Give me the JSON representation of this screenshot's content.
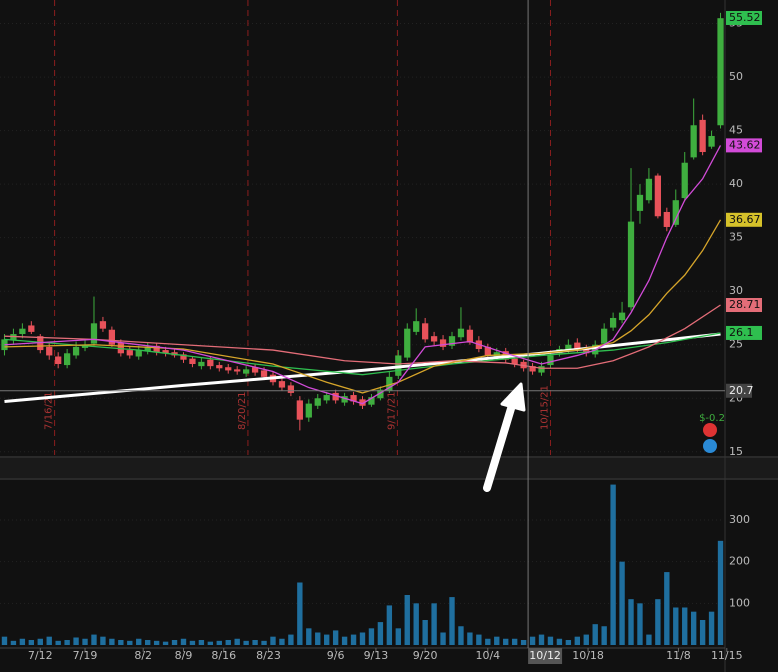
{
  "chart_data": {
    "type": "candlestick",
    "xlim": [
      -0.5,
      80.5
    ],
    "xticks": [
      {
        "value": 4,
        "label": "7/12"
      },
      {
        "value": 9,
        "label": "7/19"
      },
      {
        "value": 15.5,
        "label": "8/2"
      },
      {
        "value": 20,
        "label": "8/9"
      },
      {
        "value": 24.5,
        "label": "8/16"
      },
      {
        "value": 29.5,
        "label": "8/23"
      },
      {
        "value": 37,
        "label": "9/6"
      },
      {
        "value": 41.5,
        "label": "9/13"
      },
      {
        "value": 47,
        "label": "9/20"
      },
      {
        "value": 54,
        "label": "10/4"
      },
      {
        "value": 65.2,
        "label": "10/18"
      },
      {
        "value": 75.3,
        "label": "11/8"
      },
      {
        "value": 80.7,
        "label": "11/15"
      }
    ],
    "ylim": [
      14.7,
      57.2
    ],
    "yticks": [
      15,
      20,
      25,
      30,
      35,
      40,
      45,
      50,
      55
    ],
    "up_color": "#3fae3f",
    "down_color": "#e8525a",
    "candles": {
      "open": [
        24.5,
        25.4,
        26.0,
        26.8,
        25.8,
        24.8,
        23.9,
        23.1,
        24.0,
        24.7,
        25.1,
        27.2,
        26.4,
        25.2,
        24.5,
        23.9,
        24.4,
        24.9,
        24.5,
        24.3,
        24.1,
        23.7,
        23.0,
        23.6,
        23.1,
        22.9,
        22.7,
        22.3,
        22.9,
        22.6,
        22.2,
        21.6,
        21.2,
        19.8,
        18.2,
        19.3,
        19.8,
        20.5,
        19.6,
        20.3,
        19.9,
        19.4,
        20.0,
        20.7,
        22.1,
        23.8,
        26.2,
        27.0,
        25.8,
        25.5,
        24.9,
        25.7,
        26.4,
        25.4,
        24.8,
        23.9,
        24.4,
        23.7,
        23.4,
        23.0,
        22.4,
        23.1,
        24.2,
        24.4,
        25.2,
        24.7,
        24.1,
        25.1,
        26.6,
        27.3,
        28.5,
        37.5,
        38.5,
        40.8,
        37.4,
        36.2,
        38.7,
        42.5,
        46.0,
        43.5,
        45.5
      ],
      "high": [
        26.0,
        26.5,
        27.0,
        27.2,
        26.0,
        25.2,
        24.3,
        24.6,
        25.3,
        25.5,
        29.5,
        27.6,
        26.7,
        25.5,
        24.8,
        24.9,
        25.2,
        25.2,
        24.8,
        24.6,
        24.3,
        23.9,
        23.8,
        23.9,
        23.4,
        23.2,
        23.0,
        23.0,
        23.2,
        22.9,
        22.5,
        21.9,
        21.5,
        20.2,
        19.9,
        20.4,
        20.6,
        20.8,
        20.5,
        20.6,
        20.2,
        20.4,
        21.1,
        22.5,
        24.5,
        27.0,
        28.4,
        27.5,
        26.2,
        25.9,
        26.2,
        28.5,
        26.8,
        25.8,
        25.1,
        24.7,
        24.7,
        24.0,
        23.6,
        23.3,
        23.4,
        24.4,
        24.9,
        25.5,
        25.6,
        25.0,
        25.4,
        27.0,
        28.0,
        29.0,
        41.5,
        40.0,
        41.5,
        41.0,
        37.8,
        39.5,
        43.0,
        48.0,
        46.5,
        45.0,
        56.0
      ],
      "low": [
        24.0,
        25.0,
        25.6,
        26.0,
        24.2,
        23.6,
        22.8,
        22.8,
        23.7,
        24.4,
        24.9,
        26.2,
        24.8,
        23.9,
        23.7,
        23.6,
        24.1,
        24.0,
        23.9,
        23.8,
        23.3,
        22.9,
        22.7,
        22.7,
        22.5,
        22.3,
        22.2,
        22.0,
        22.1,
        21.7,
        21.2,
        20.7,
        20.2,
        17.0,
        17.8,
        19.0,
        19.5,
        19.5,
        19.3,
        19.4,
        19.0,
        19.2,
        19.8,
        20.5,
        21.8,
        23.5,
        25.9,
        25.2,
        24.9,
        24.5,
        24.6,
        25.4,
        25.0,
        24.3,
        23.7,
        23.6,
        23.3,
        22.9,
        22.5,
        22.2,
        22.1,
        22.8,
        23.9,
        24.2,
        24.2,
        23.9,
        23.8,
        24.9,
        26.3,
        27.0,
        28.2,
        36.3,
        38.2,
        36.8,
        35.6,
        36.0,
        38.4,
        42.3,
        42.7,
        43.3,
        45.2
      ],
      "close": [
        25.5,
        26.0,
        26.5,
        26.2,
        24.5,
        24.0,
        23.2,
        24.2,
        24.8,
        25.0,
        27.0,
        26.5,
        25.0,
        24.2,
        24.0,
        24.5,
        24.8,
        24.3,
        24.2,
        24.0,
        23.6,
        23.2,
        23.4,
        23.0,
        22.8,
        22.6,
        22.5,
        22.7,
        22.4,
        22.0,
        21.5,
        21.0,
        20.5,
        18.0,
        19.5,
        20.0,
        20.3,
        19.8,
        20.2,
        19.7,
        19.3,
        20.1,
        20.8,
        22.0,
        24.0,
        26.5,
        27.2,
        25.5,
        25.3,
        24.8,
        25.8,
        26.5,
        25.2,
        24.6,
        24.0,
        24.3,
        23.6,
        23.2,
        22.8,
        22.5,
        23.0,
        24.0,
        24.6,
        25.0,
        24.5,
        24.2,
        25.0,
        26.5,
        27.5,
        28.0,
        36.5,
        39.0,
        40.5,
        37.0,
        36.0,
        38.5,
        42.0,
        45.5,
        43.0,
        44.5,
        55.5
      ]
    },
    "lines": [
      {
        "color": "#ffffff",
        "x": [
          0,
          20,
          40,
          60,
          80
        ],
        "values": [
          19.7,
          21.2,
          22.6,
          24.2,
          26.0
        ]
      },
      {
        "color": "#2fbf4f",
        "x": [
          0,
          15,
          30,
          40,
          50,
          60,
          68,
          74,
          80
        ],
        "values": [
          25.5,
          24.5,
          23.0,
          22.2,
          23.2,
          24.0,
          24.5,
          25.2,
          26.1
        ]
      },
      {
        "color": "#e46d78",
        "x": [
          0,
          10,
          20,
          30,
          38,
          44,
          50,
          56,
          60,
          64,
          68,
          72,
          76,
          80
        ],
        "values": [
          25.8,
          25.5,
          25.0,
          24.5,
          23.5,
          23.2,
          23.5,
          23.3,
          22.8,
          22.8,
          23.5,
          24.8,
          26.5,
          28.71
        ]
      },
      {
        "color": "#d6a52a",
        "x": [
          0,
          10,
          20,
          30,
          36,
          40,
          44,
          48,
          54,
          60,
          64,
          68,
          70,
          72,
          74,
          76,
          78,
          80
        ],
        "values": [
          24.8,
          25.0,
          24.6,
          23.2,
          21.5,
          20.5,
          21.5,
          23.0,
          24.0,
          24.2,
          24.5,
          25.2,
          26.3,
          27.8,
          29.8,
          31.5,
          33.8,
          36.67
        ]
      },
      {
        "color": "#d24bd8",
        "x": [
          0,
          10,
          20,
          30,
          34,
          40,
          44,
          47,
          52,
          56,
          60,
          64,
          66,
          68,
          70,
          72,
          74,
          76,
          78,
          80
        ],
        "values": [
          25.0,
          25.5,
          24.5,
          22.5,
          21.0,
          19.5,
          21.5,
          24.8,
          25.3,
          24.2,
          23.2,
          24.0,
          24.5,
          25.5,
          28.0,
          31.0,
          35.0,
          38.5,
          40.5,
          43.62
        ]
      }
    ],
    "price_tags": [
      {
        "value": 55.52,
        "color": "#2fbf4f"
      },
      {
        "value": 43.62,
        "color": "#d24bd8"
      },
      {
        "value": 36.67,
        "color": "#d6c22a"
      },
      {
        "value": 28.71,
        "color": "#e46d78"
      },
      {
        "value": 26.1,
        "color": "#2fbf4f"
      }
    ],
    "events": [
      {
        "x": 5.6,
        "label": "7/16/21"
      },
      {
        "x": 27.2,
        "label": "8/20/21"
      },
      {
        "x": 43.9,
        "label": "9/17/21"
      },
      {
        "x": 61,
        "label": "10/15/21"
      }
    ],
    "crosshair": {
      "x": 58.5,
      "x_label": "10/12",
      "y": 20.7
    },
    "pl_label": "$-0.2",
    "volume": {
      "color": "#1f6f9f",
      "ylim": [
        0,
        396
      ],
      "yticks": [
        100,
        200,
        300
      ],
      "values": [
        20,
        10,
        15,
        12,
        15,
        20,
        10,
        12,
        18,
        15,
        25,
        20,
        15,
        12,
        10,
        15,
        12,
        10,
        8,
        12,
        15,
        10,
        12,
        8,
        10,
        12,
        15,
        10,
        12,
        10,
        20,
        15,
        25,
        150,
        40,
        30,
        25,
        35,
        20,
        25,
        30,
        40,
        55,
        95,
        40,
        120,
        100,
        60,
        100,
        30,
        115,
        45,
        30,
        25,
        15,
        20,
        15,
        15,
        12,
        20,
        25,
        20,
        15,
        12,
        20,
        25,
        50,
        45,
        385,
        200,
        110,
        100,
        25,
        110,
        175,
        90,
        90,
        80,
        60,
        80,
        250
      ]
    }
  }
}
